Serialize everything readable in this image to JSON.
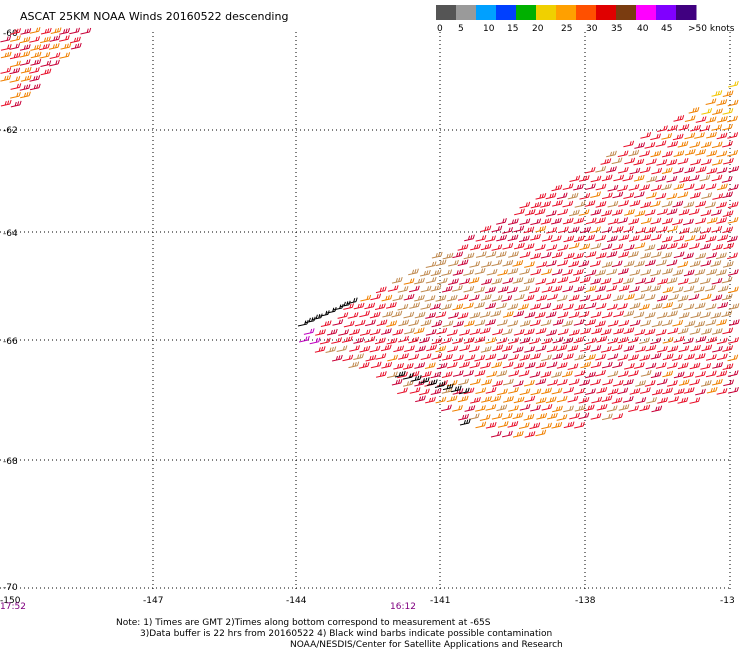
{
  "title": "ASCAT 25KM NOAA Winds 20160522 descending",
  "legend": {
    "colors": [
      "#555555",
      "#9a9a9a",
      "#00a0ff",
      "#0040ff",
      "#00b000",
      "#f0d000",
      "#ffa000",
      "#ff5000",
      "#e00000",
      "#7a3c10",
      "#ff00ff",
      "#8000ff",
      "#400080"
    ],
    "labels": [
      "0",
      "5",
      "10",
      "15",
      "20",
      "25",
      "30",
      "35",
      "40",
      "45",
      ">50 knots"
    ]
  },
  "axes": {
    "lon_labels": [
      "-150",
      "-147",
      "-144",
      "-141",
      "-138",
      "-13"
    ],
    "lat_labels": [
      "-60",
      "-62",
      "-64",
      "-66",
      "-68",
      "-70"
    ]
  },
  "times": [
    "17:52",
    "16:12"
  ],
  "notes": [
    "Note: 1) Times are GMT 2)Times along bottom correspond to measurement at -65S",
    "3)Data buffer is 22 hrs from 20160522 4) Black wind barbs indicate possible contamination",
    "NOAA/NESDIS/Center for Satellite Applications and Research"
  ],
  "wind_colors": {
    "yellow": "#f2c500",
    "orange": "#f08000",
    "tan": "#c08a50",
    "red": "#e8102a",
    "crimson": "#c80038",
    "magenta": "#c000c0",
    "black": "#000000"
  }
}
